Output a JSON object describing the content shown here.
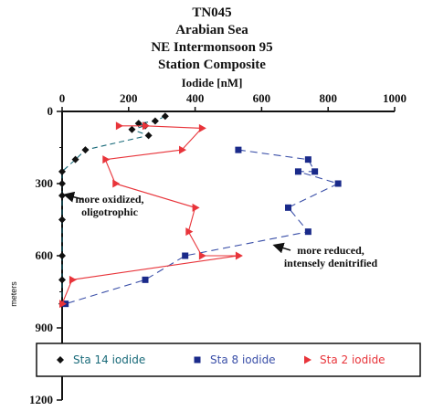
{
  "chart_data": {
    "type": "line",
    "title_lines": [
      "TN045",
      "Arabian  Sea",
      "NE Intermonsoon 95",
      "Station Composite"
    ],
    "xlabel": "Iodide [nM]",
    "ylabel": "meters",
    "xlim": [
      0,
      1000
    ],
    "ylim": [
      0,
      1200
    ],
    "y_inverted": true,
    "x_ticks": [
      "0",
      "200",
      "400",
      "600",
      "800",
      "1000"
    ],
    "y_ticks": [
      "0",
      "300",
      "600",
      "900",
      "1200"
    ],
    "grid": false,
    "legend_position": "bottom",
    "series": [
      {
        "name": "Sta 14 iodide",
        "color": "#1a6b7a",
        "marker": "diamond",
        "marker_color": "#111111",
        "points": [
          [
            310,
            20
          ],
          [
            280,
            40
          ],
          [
            230,
            50
          ],
          [
            250,
            60
          ],
          [
            210,
            75
          ],
          [
            260,
            100
          ],
          [
            70,
            160
          ],
          [
            40,
            200
          ],
          [
            0,
            250
          ],
          [
            0,
            300
          ],
          [
            0,
            350
          ],
          [
            0,
            450
          ],
          [
            0,
            600
          ],
          [
            0,
            700
          ],
          [
            0,
            800
          ]
        ]
      },
      {
        "name": "Sta 8 iodide",
        "color": "#3a4fa8",
        "marker": "square",
        "marker_color": "#1a2a8a",
        "points": [
          [
            530,
            160
          ],
          [
            740,
            200
          ],
          [
            760,
            250
          ],
          [
            710,
            250
          ],
          [
            830,
            300
          ],
          [
            680,
            400
          ],
          [
            740,
            500
          ],
          [
            370,
            600
          ],
          [
            250,
            700
          ],
          [
            10,
            800
          ]
        ]
      },
      {
        "name": "Sta 2 iodide",
        "color": "#e8343a",
        "marker": "triangle-right",
        "marker_color": "#e8343a",
        "points": [
          [
            170,
            60
          ],
          [
            250,
            60
          ],
          [
            420,
            70
          ],
          [
            360,
            160
          ],
          [
            130,
            200
          ],
          [
            160,
            300
          ],
          [
            400,
            400
          ],
          [
            380,
            500
          ],
          [
            420,
            600
          ],
          [
            530,
            600
          ],
          [
            30,
            700
          ],
          [
            0,
            800
          ]
        ]
      }
    ],
    "annotations": [
      {
        "lines": [
          "more oxidized,",
          "oligotrophic"
        ],
        "arrow_to": [
          0,
          340
        ]
      },
      {
        "lines": [
          "more reduced,",
          "intensely denitrified"
        ],
        "arrow_to": [
          630,
          550
        ]
      }
    ]
  }
}
